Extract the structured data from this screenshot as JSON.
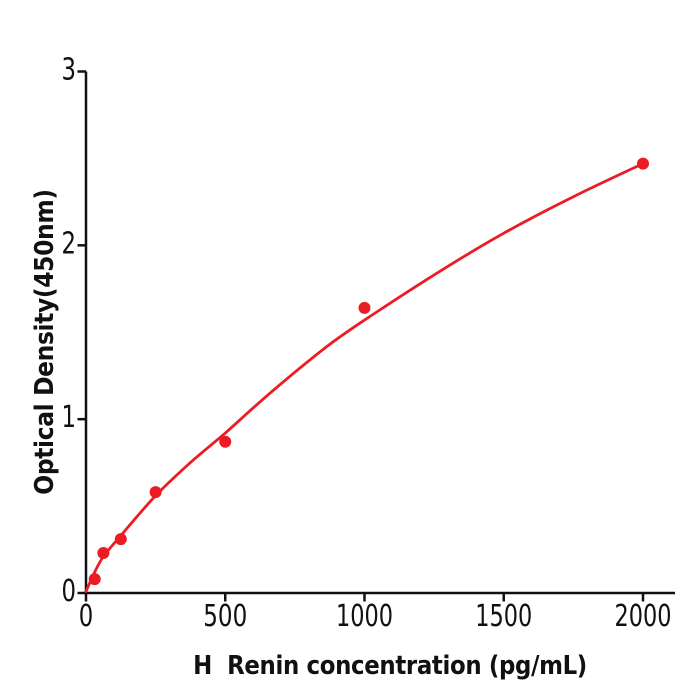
{
  "page": {
    "background": "#ffffff",
    "description": "ELISA standard curve plot"
  },
  "chart_data": {
    "type": "scatter",
    "title": "",
    "xlabel": "H  Renin concentration (pg/mL)",
    "ylabel": "Optical Density(450nm)",
    "xlim": [
      0,
      2115
    ],
    "ylim": [
      0,
      3
    ],
    "xticks": [
      0,
      500,
      1000,
      1500,
      2000
    ],
    "yticks": [
      0,
      1,
      2,
      3
    ],
    "grid": false,
    "legend_position": "none",
    "marker_color": "#ed1c24",
    "line_color": "#ed1c24",
    "axis_color": "#111111",
    "series": [
      {
        "name": "standard-data-points",
        "type": "scatter",
        "x": [
          31.25,
          62.5,
          125,
          250,
          500,
          1000,
          2000
        ],
        "y": [
          0.08,
          0.23,
          0.31,
          0.58,
          0.87,
          1.64,
          2.47
        ]
      },
      {
        "name": "fitted-curve",
        "type": "line",
        "x": [
          0,
          31.25,
          62.5,
          125,
          250,
          375,
          500,
          625,
          750,
          875,
          1000,
          1250,
          1500,
          1750,
          2000
        ],
        "y": [
          0.01,
          0.12,
          0.21,
          0.33,
          0.56,
          0.75,
          0.92,
          1.1,
          1.27,
          1.43,
          1.57,
          1.83,
          2.07,
          2.28,
          2.47
        ]
      }
    ]
  }
}
